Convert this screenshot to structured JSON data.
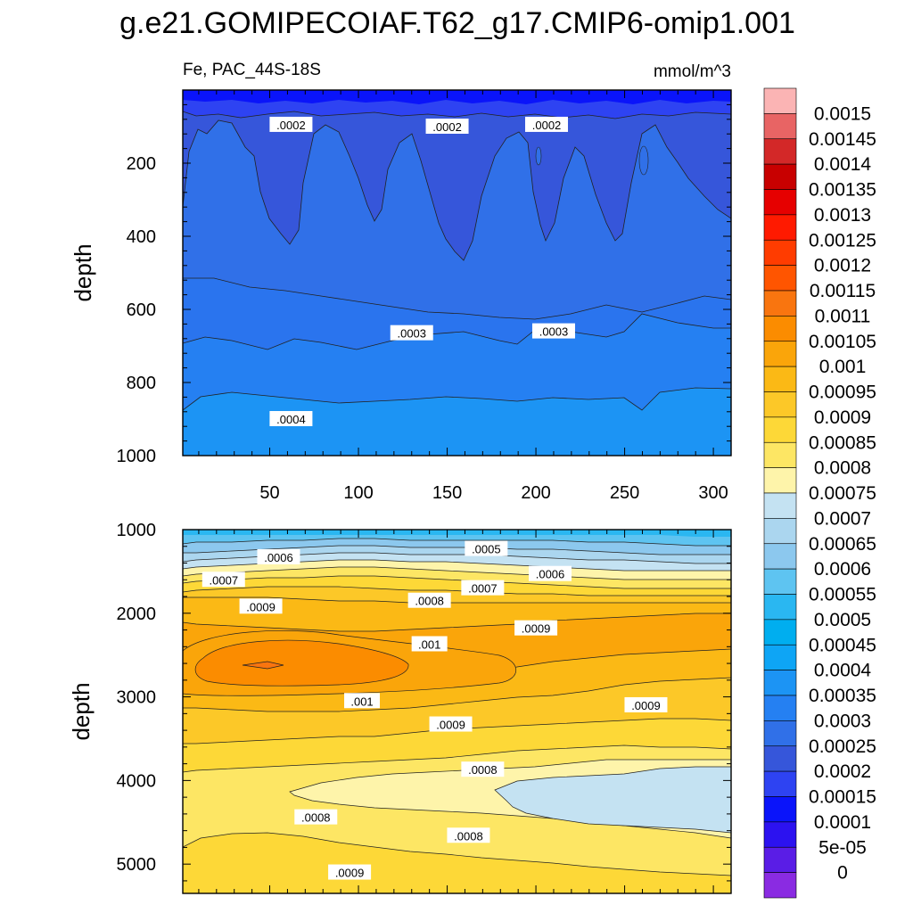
{
  "figure": {
    "title": "g.e21.GOMIPECOIAF.T62_g17.CMIP6-omip1.001",
    "left_subtitle": "Fe, PAC_44S-18S",
    "right_subtitle": "mmol/m^3"
  },
  "chart_data": [
    {
      "type": "heatmap",
      "panel": "upper",
      "title": "",
      "ylabel": "depth",
      "xlabel": "",
      "xlim": [
        1,
        310
      ],
      "ylim": [
        1000,
        0
      ],
      "xticks": [
        50,
        100,
        150,
        200,
        250,
        300
      ],
      "xtick_labels": [
        "50",
        "100",
        "150",
        "200",
        "250",
        "300"
      ],
      "yticks": [
        200,
        400,
        600,
        800,
        1000
      ],
      "ytick_labels": [
        "200",
        "400",
        "600",
        "800",
        "1000"
      ],
      "units": "mmol/m^3",
      "contour_labels": [
        {
          "text": ".0002",
          "x": 62,
          "y": 95
        },
        {
          "text": ".0002",
          "x": 150,
          "y": 100
        },
        {
          "text": ".0002",
          "x": 206,
          "y": 95
        },
        {
          "text": ".0003",
          "x": 130,
          "y": 665
        },
        {
          "text": ".0003",
          "x": 210,
          "y": 660
        },
        {
          "text": ".0004",
          "x": 62,
          "y": 900
        }
      ],
      "bands": [
        {
          "depth_top": 0,
          "depth_bottom": 50,
          "value_range": [
            0.0001,
            0.00015
          ]
        },
        {
          "depth_top": 50,
          "depth_bottom": 120,
          "value_range": [
            0.00015,
            0.0002
          ]
        },
        {
          "depth_top": 120,
          "depth_bottom": 500,
          "value_range": [
            0.0002,
            0.00025
          ]
        },
        {
          "depth_top": 500,
          "depth_bottom": 680,
          "value_range": [
            0.00025,
            0.0003
          ]
        },
        {
          "depth_top": 680,
          "depth_bottom": 860,
          "value_range": [
            0.0003,
            0.00035
          ]
        },
        {
          "depth_top": 860,
          "depth_bottom": 1000,
          "value_range": [
            0.00035,
            0.0004
          ]
        }
      ]
    },
    {
      "type": "heatmap",
      "panel": "lower",
      "title": "",
      "ylabel": "depth",
      "xlabel": "",
      "xlim": [
        1,
        310
      ],
      "ylim": [
        5350,
        1000
      ],
      "yticks": [
        1000,
        2000,
        3000,
        4000,
        5000
      ],
      "ytick_labels": [
        "1000",
        "2000",
        "3000",
        "4000",
        "5000"
      ],
      "units": "mmol/m^3",
      "contour_labels": [
        {
          "text": ".0006",
          "x": 55,
          "y": 1330
        },
        {
          "text": ".0005",
          "x": 172,
          "y": 1230
        },
        {
          "text": ".0007",
          "x": 24,
          "y": 1600
        },
        {
          "text": ".0006",
          "x": 208,
          "y": 1530
        },
        {
          "text": ".0007",
          "x": 170,
          "y": 1700
        },
        {
          "text": ".0008",
          "x": 140,
          "y": 1850
        },
        {
          "text": ".0009",
          "x": 45,
          "y": 1920
        },
        {
          "text": ".0009",
          "x": 200,
          "y": 2180
        },
        {
          "text": ".001",
          "x": 140,
          "y": 2370
        },
        {
          "text": ".001",
          "x": 102,
          "y": 3050
        },
        {
          "text": ".0009",
          "x": 152,
          "y": 3330
        },
        {
          "text": ".0009",
          "x": 262,
          "y": 3100
        },
        {
          "text": ".0008",
          "x": 170,
          "y": 3870
        },
        {
          "text": ".0008",
          "x": 76,
          "y": 4440
        },
        {
          "text": ".0008",
          "x": 162,
          "y": 4660
        },
        {
          "text": ".0009",
          "x": 95,
          "y": 5100
        }
      ]
    }
  ],
  "colorbar": {
    "levels": [
      "0.0015",
      "0.00145",
      "0.0014",
      "0.00135",
      "0.0013",
      "0.00125",
      "0.0012",
      "0.00115",
      "0.0011",
      "0.00105",
      "0.001",
      "0.00095",
      "0.0009",
      "0.00085",
      "0.0008",
      "0.00075",
      "0.0007",
      "0.00065",
      "0.0006",
      "0.00055",
      "0.0005",
      "0.00045",
      "0.0004",
      "0.00035",
      "0.0003",
      "0.00025",
      "0.0002",
      "0.00015",
      "0.0001",
      "5e-05",
      "0"
    ],
    "colors": [
      "#fbb4b4",
      "#e86464",
      "#d32828",
      "#c80000",
      "#e60000",
      "#ff1a00",
      "#ff3c00",
      "#ff5500",
      "#f9750f",
      "#fb8c00",
      "#faa50a",
      "#fbb915",
      "#fcc828",
      "#fdd837",
      "#fde664",
      "#fef4aa",
      "#c4e2f2",
      "#abd6ef",
      "#8cc8ee",
      "#5ec4f1",
      "#2ab7f1",
      "#00aeef",
      "#0ea5f5",
      "#1c94f4",
      "#2580f2",
      "#3070e8",
      "#3656da",
      "#2e43f2",
      "#0a14fa",
      "#2c12f0",
      "#5a1de6",
      "#8a2be2"
    ]
  }
}
